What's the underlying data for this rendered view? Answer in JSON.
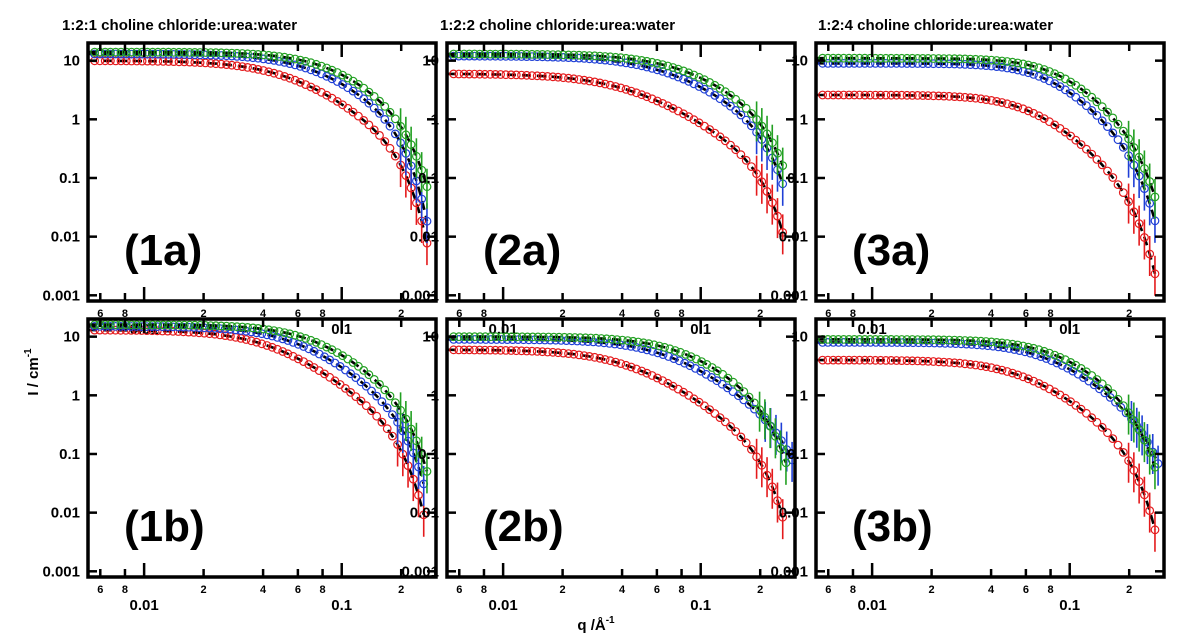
{
  "figure": {
    "column_titles": [
      "1:2:1 choline chloride:urea:water",
      "1:2:2 choline chloride:urea:water",
      "1:2:4 choline chloride:urea:water"
    ],
    "ylabel": "I / cm",
    "ylabel_sup": "-1",
    "xlabel": "q /Å",
    "xlabel_sup": "-1"
  },
  "colors": {
    "red": "#e41a1c",
    "blue": "#1f3fd6",
    "green": "#22a022",
    "fit": "#000000"
  },
  "chart_data": [
    {
      "type": "scatter",
      "panel": "(1a)",
      "column": 0,
      "row": 0,
      "log_x": true,
      "log_y": true,
      "xlim": [
        0.0052,
        0.3
      ],
      "ylim": [
        0.0008,
        20
      ],
      "x_ticks": [
        "0.01",
        "0.1"
      ],
      "x_minor_ticks": [
        "6",
        "8",
        "2",
        "4",
        "6",
        "8",
        "2"
      ],
      "y_ticks": [
        "10",
        "1",
        "0.1",
        "0.01",
        "0.001"
      ],
      "series": [
        {
          "color": "red",
          "I0": 10,
          "qc": 0.055,
          "n": 1.2,
          "cut": 0.2,
          "qmax": 0.27
        },
        {
          "color": "blue",
          "I0": 13,
          "qc": 0.075,
          "n": 1.25,
          "cut": 0.2,
          "qmax": 0.27
        },
        {
          "color": "green",
          "I0": 14,
          "qc": 0.09,
          "n": 1.35,
          "cut": 0.22,
          "qmax": 0.27
        }
      ]
    },
    {
      "type": "scatter",
      "panel": "(2a)",
      "column": 1,
      "row": 0,
      "log_x": true,
      "log_y": true,
      "xlim": [
        0.0052,
        0.3
      ],
      "ylim": [
        0.0008,
        20
      ],
      "x_ticks": [
        "0.01",
        "0.1"
      ],
      "x_minor_ticks": [
        "6",
        "8",
        "2",
        "4",
        "6",
        "8",
        "2"
      ],
      "y_ticks": [
        "10",
        "1",
        "0.1",
        "0.01",
        "0.001"
      ],
      "series": [
        {
          "color": "red",
          "I0": 6,
          "qc": 0.045,
          "n": 1.1,
          "cut": 0.21,
          "qmax": 0.26
        },
        {
          "color": "blue",
          "I0": 12,
          "qc": 0.07,
          "n": 1.15,
          "cut": 0.22,
          "qmax": 0.26
        },
        {
          "color": "green",
          "I0": 13,
          "qc": 0.085,
          "n": 1.2,
          "cut": 0.23,
          "qmax": 0.26
        }
      ]
    },
    {
      "type": "scatter",
      "panel": "(3a)",
      "column": 2,
      "row": 0,
      "log_x": true,
      "log_y": true,
      "xlim": [
        0.0052,
        0.3
      ],
      "ylim": [
        0.0008,
        20
      ],
      "x_ticks": [
        "0.01",
        "0.1"
      ],
      "x_minor_ticks": [
        "6",
        "8",
        "2",
        "4",
        "6",
        "8",
        "2"
      ],
      "y_ticks": [
        "10",
        "1",
        "0.1",
        "0.01",
        "0.001"
      ],
      "series": [
        {
          "color": "red",
          "I0": 2.6,
          "qc": 0.065,
          "n": 1.5,
          "cut": 0.21,
          "qmax": 0.27
        },
        {
          "color": "blue",
          "I0": 9,
          "qc": 0.08,
          "n": 1.6,
          "cut": 0.22,
          "qmax": 0.27
        },
        {
          "color": "green",
          "I0": 11,
          "qc": 0.09,
          "n": 1.6,
          "cut": 0.23,
          "qmax": 0.27
        }
      ]
    },
    {
      "type": "scatter",
      "panel": "(1b)",
      "column": 0,
      "row": 1,
      "log_x": true,
      "log_y": true,
      "xlim": [
        0.0052,
        0.3
      ],
      "ylim": [
        0.0008,
        20
      ],
      "x_ticks": [
        "0.01",
        "0.1"
      ],
      "x_minor_ticks": [
        "6",
        "8",
        "2",
        "4",
        "6",
        "8",
        "2"
      ],
      "y_ticks": [
        "10",
        "1",
        "0.1",
        "0.01",
        "0.001"
      ],
      "series": [
        {
          "color": "red",
          "I0": 13,
          "qc": 0.045,
          "n": 1.25,
          "cut": 0.2,
          "qmax": 0.26
        },
        {
          "color": "blue",
          "I0": 15,
          "qc": 0.06,
          "n": 1.3,
          "cut": 0.21,
          "qmax": 0.26
        },
        {
          "color": "green",
          "I0": 16,
          "qc": 0.075,
          "n": 1.35,
          "cut": 0.22,
          "qmax": 0.27
        }
      ]
    },
    {
      "type": "scatter",
      "panel": "(2b)",
      "column": 1,
      "row": 1,
      "log_x": true,
      "log_y": true,
      "xlim": [
        0.0052,
        0.3
      ],
      "ylim": [
        0.0008,
        20
      ],
      "x_ticks": [
        "0.01",
        "0.1"
      ],
      "x_minor_ticks": [
        "6",
        "8",
        "2",
        "4",
        "6",
        "8",
        "2"
      ],
      "y_ticks": [
        "10",
        "1",
        "0.1",
        "0.01",
        "0.001"
      ],
      "series": [
        {
          "color": "red",
          "I0": 6,
          "qc": 0.045,
          "n": 1.2,
          "cut": 0.21,
          "qmax": 0.26
        },
        {
          "color": "blue",
          "I0": 9,
          "qc": 0.07,
          "n": 1.25,
          "cut": 0.28,
          "qmax": 0.29
        },
        {
          "color": "green",
          "I0": 10,
          "qc": 0.085,
          "n": 1.3,
          "cut": 0.23,
          "qmax": 0.27
        }
      ]
    },
    {
      "type": "scatter",
      "panel": "(3b)",
      "column": 2,
      "row": 1,
      "log_x": true,
      "log_y": true,
      "xlim": [
        0.0052,
        0.3
      ],
      "ylim": [
        0.0008,
        20
      ],
      "x_ticks": [
        "0.01",
        "0.1"
      ],
      "x_minor_ticks": [
        "6",
        "8",
        "2",
        "4",
        "6",
        "8",
        "2"
      ],
      "y_ticks": [
        "10",
        "1",
        "0.1",
        "0.01",
        "0.001"
      ],
      "series": [
        {
          "color": "red",
          "I0": 4,
          "qc": 0.06,
          "n": 1.3,
          "cut": 0.21,
          "qmax": 0.27
        },
        {
          "color": "blue",
          "I0": 8,
          "qc": 0.08,
          "n": 1.35,
          "cut": 0.26,
          "qmax": 0.28
        },
        {
          "color": "green",
          "I0": 9,
          "qc": 0.09,
          "n": 1.4,
          "cut": 0.23,
          "qmax": 0.27
        }
      ]
    }
  ]
}
